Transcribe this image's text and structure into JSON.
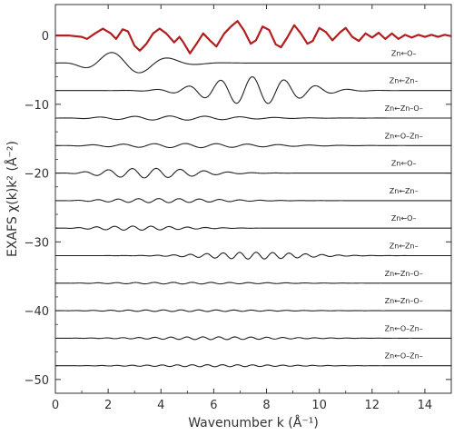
{
  "chart_data": {
    "type": "line",
    "xlabel": "Wavenumber k (Å⁻¹)",
    "ylabel": "EXAFS χ(k)k² (Å⁻²)",
    "xlim": [
      0,
      15
    ],
    "ylim": [
      -52,
      4.5
    ],
    "x_ticks": [
      0,
      2,
      4,
      6,
      8,
      10,
      12,
      14
    ],
    "y_ticks": [
      0,
      -10,
      -20,
      -30,
      -40,
      -50
    ],
    "grid": false,
    "colors": {
      "total": "#b21e1e",
      "path": "#222222",
      "axis": "#333333"
    },
    "series": [
      {
        "name": "",
        "label": "",
        "baseline": 0,
        "color": "#b21e1e",
        "points": [
          [
            0.0,
            0.0
          ],
          [
            0.5,
            0.0
          ],
          [
            1.0,
            -0.2
          ],
          [
            1.2,
            -0.5
          ],
          [
            1.5,
            0.3
          ],
          [
            1.8,
            1.0
          ],
          [
            2.1,
            0.3
          ],
          [
            2.3,
            -0.5
          ],
          [
            2.55,
            0.9
          ],
          [
            2.75,
            0.6
          ],
          [
            3.0,
            -1.5
          ],
          [
            3.2,
            -2.2
          ],
          [
            3.45,
            -1.2
          ],
          [
            3.7,
            0.3
          ],
          [
            3.95,
            1.0
          ],
          [
            4.2,
            0.3
          ],
          [
            4.5,
            -1.0
          ],
          [
            4.7,
            -0.2
          ],
          [
            4.85,
            -1.0
          ],
          [
            5.1,
            -2.6
          ],
          [
            5.35,
            -1.2
          ],
          [
            5.6,
            0.3
          ],
          [
            5.85,
            -0.7
          ],
          [
            6.1,
            -1.6
          ],
          [
            6.4,
            0.3
          ],
          [
            6.65,
            1.3
          ],
          [
            6.9,
            2.1
          ],
          [
            7.15,
            0.7
          ],
          [
            7.4,
            -1.2
          ],
          [
            7.6,
            -0.7
          ],
          [
            7.85,
            1.3
          ],
          [
            8.1,
            0.8
          ],
          [
            8.35,
            -1.3
          ],
          [
            8.55,
            -1.7
          ],
          [
            8.8,
            -0.2
          ],
          [
            9.05,
            1.5
          ],
          [
            9.3,
            0.3
          ],
          [
            9.55,
            -1.2
          ],
          [
            9.75,
            -0.8
          ],
          [
            10.0,
            1.1
          ],
          [
            10.25,
            0.5
          ],
          [
            10.5,
            -0.7
          ],
          [
            10.8,
            0.5
          ],
          [
            11.0,
            1.1
          ],
          [
            11.25,
            -0.2
          ],
          [
            11.5,
            -0.8
          ],
          [
            11.75,
            0.3
          ],
          [
            12.0,
            -0.3
          ],
          [
            12.25,
            0.4
          ],
          [
            12.5,
            -0.5
          ],
          [
            12.75,
            0.3
          ],
          [
            13.0,
            -0.5
          ],
          [
            13.25,
            0.1
          ],
          [
            13.5,
            -0.3
          ],
          [
            13.75,
            0.1
          ],
          [
            14.0,
            -0.2
          ],
          [
            14.25,
            0.1
          ],
          [
            14.5,
            -0.2
          ],
          [
            14.75,
            0.1
          ],
          [
            15.0,
            -0.1
          ]
        ]
      },
      {
        "name": "Zn←O–",
        "label": "Zn←O–",
        "baseline": -4,
        "envelope": "gauss",
        "amp": 1.6,
        "freq": 0.9,
        "phase": 1.9,
        "center": 2.5,
        "width": 2.0
      },
      {
        "name": "Zn←Zn–",
        "label": "Zn←Zn–",
        "baseline": -8,
        "envelope": "gauss",
        "amp": 2.0,
        "freq": 1.65,
        "phase": 0.6,
        "center": 7.5,
        "width": 2.3
      },
      {
        "name": "Zn←Zn–O–",
        "label": "Zn←Zn–O–",
        "baseline": -12,
        "envelope": "gauss",
        "amp": 0.3,
        "freq": 1.5,
        "phase": 0.0,
        "center": 4.5,
        "width": 3.5
      },
      {
        "name": "Zn←O–Zn–",
        "label": "Zn←O–Zn–",
        "baseline": -16,
        "envelope": "gauss",
        "amp": 0.3,
        "freq": 1.7,
        "phase": 0.4,
        "center": 5.0,
        "width": 4.0
      },
      {
        "name": "Zn←O–",
        "label": "Zn←O–",
        "baseline": -20,
        "envelope": "gauss",
        "amp": 0.7,
        "freq": 2.2,
        "phase": 0.3,
        "center": 3.5,
        "width": 2.5
      },
      {
        "name": "Zn←Zn–",
        "label": "Zn←Zn–",
        "baseline": -24,
        "envelope": "gauss",
        "amp": 0.3,
        "freq": 2.6,
        "phase": 1.0,
        "center": 4.0,
        "width": 3.0
      },
      {
        "name": "Zn←O–",
        "label": "Zn←O–",
        "baseline": -28,
        "envelope": "gauss",
        "amp": 0.3,
        "freq": 2.9,
        "phase": 0.0,
        "center": 3.0,
        "width": 2.5
      },
      {
        "name": "Zn←Zn–",
        "label": "Zn←Zn–",
        "baseline": -32,
        "envelope": "gauss",
        "amp": 0.5,
        "freq": 3.2,
        "phase": 0.5,
        "center": 7.5,
        "width": 2.5
      },
      {
        "name": "Zn←Zn–O–",
        "label": "Zn←Zn–O–",
        "baseline": -36,
        "envelope": "gauss",
        "amp": 0.12,
        "freq": 2.8,
        "phase": 0.0,
        "center": 5.0,
        "width": 4.0
      },
      {
        "name": "Zn←Zn–O–",
        "label": "Zn←Zn–O–",
        "baseline": -40,
        "envelope": "gauss",
        "amp": 0.12,
        "freq": 3.0,
        "phase": 0.7,
        "center": 5.0,
        "width": 4.0
      },
      {
        "name": "Zn←O–Zn–",
        "label": "Zn←O–Zn–",
        "baseline": -44,
        "envelope": "gauss",
        "amp": 0.2,
        "freq": 3.3,
        "phase": 0.2,
        "center": 6.0,
        "width": 3.5
      },
      {
        "name": "Zn←O–Zn–",
        "label": "Zn←O–Zn–",
        "baseline": -48,
        "envelope": "gauss",
        "amp": 0.15,
        "freq": 3.5,
        "phase": 1.1,
        "center": 6.0,
        "width": 3.5
      }
    ]
  }
}
